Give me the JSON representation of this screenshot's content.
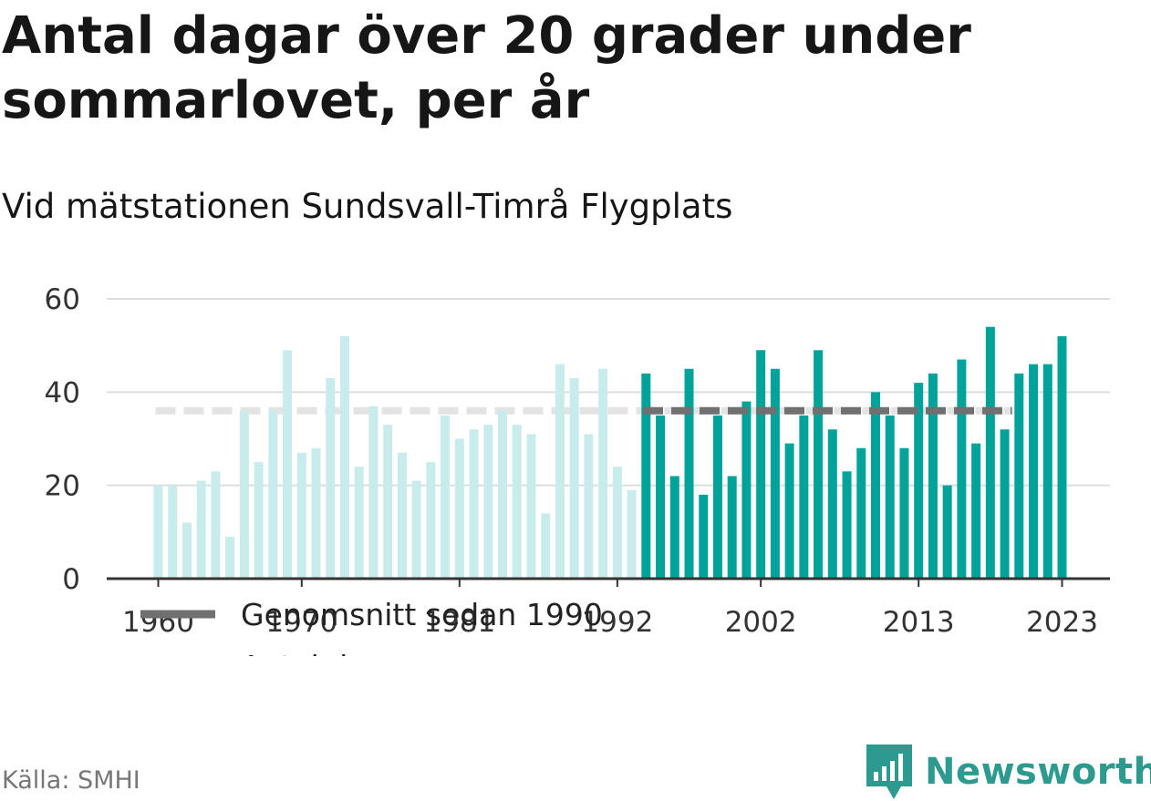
{
  "title": "Antal dagar över 20 grader under sommarlovet, per år",
  "subtitle": "Vid mätstationen Sundsvall-Timrå Flygplats",
  "source": "Källa: SMHI",
  "brand": {
    "name": "Newsworthy",
    "icon": "newsworthy-logo-icon",
    "color": "#2d9a8f"
  },
  "colors": {
    "bar": "#00a39a",
    "bar_faded": "#c8eceb",
    "average": "#707070",
    "average_faded": "#e3e3e3",
    "grid": "#dddddd",
    "axis": "#333333"
  },
  "chart_data": {
    "type": "bar",
    "x": [
      1960,
      1961,
      1962,
      1963,
      1964,
      1965,
      1966,
      1967,
      1968,
      1969,
      1970,
      1971,
      1972,
      1973,
      1974,
      1975,
      1976,
      1977,
      1978,
      1979,
      1980,
      1981,
      1982,
      1983,
      1984,
      1985,
      1986,
      1987,
      1988,
      1989,
      1990,
      1991,
      1992,
      1993,
      1994,
      1995,
      1996,
      1997,
      1998,
      1999,
      2000,
      2001,
      2002,
      2003,
      2004,
      2005,
      2006,
      2007,
      2008,
      2009,
      2010,
      2011,
      2012,
      2013,
      2014,
      2015,
      2016,
      2017,
      2018,
      2019,
      2020,
      2021,
      2022,
      2023
    ],
    "series": [
      {
        "name": "Antal dagar",
        "values": [
          20,
          20,
          12,
          21,
          23,
          9,
          36,
          25,
          36,
          49,
          27,
          28,
          43,
          52,
          24,
          37,
          33,
          27,
          21,
          25,
          35,
          30,
          32,
          33,
          36,
          33,
          31,
          14,
          46,
          43,
          31,
          45,
          24,
          19,
          44,
          35,
          22,
          45,
          18,
          35,
          22,
          38,
          49,
          45,
          29,
          35,
          49,
          32,
          23,
          28,
          40,
          35,
          28,
          42,
          44,
          20,
          47,
          29,
          54,
          32,
          44,
          46,
          46,
          52
        ]
      },
      {
        "name": "Genomsnitt sedan 1990",
        "value": 36,
        "from": 1994,
        "to": 2019
      }
    ],
    "ylim": [
      0,
      60
    ],
    "yticks": [
      0,
      20,
      40,
      60
    ],
    "xticks": [
      1960,
      1970,
      1981,
      1992,
      2002,
      2013,
      2023
    ],
    "legend": [
      "Genomsnitt sedan 1990",
      "Antal dagar"
    ],
    "legend_position": "top-left",
    "grid": true
  }
}
